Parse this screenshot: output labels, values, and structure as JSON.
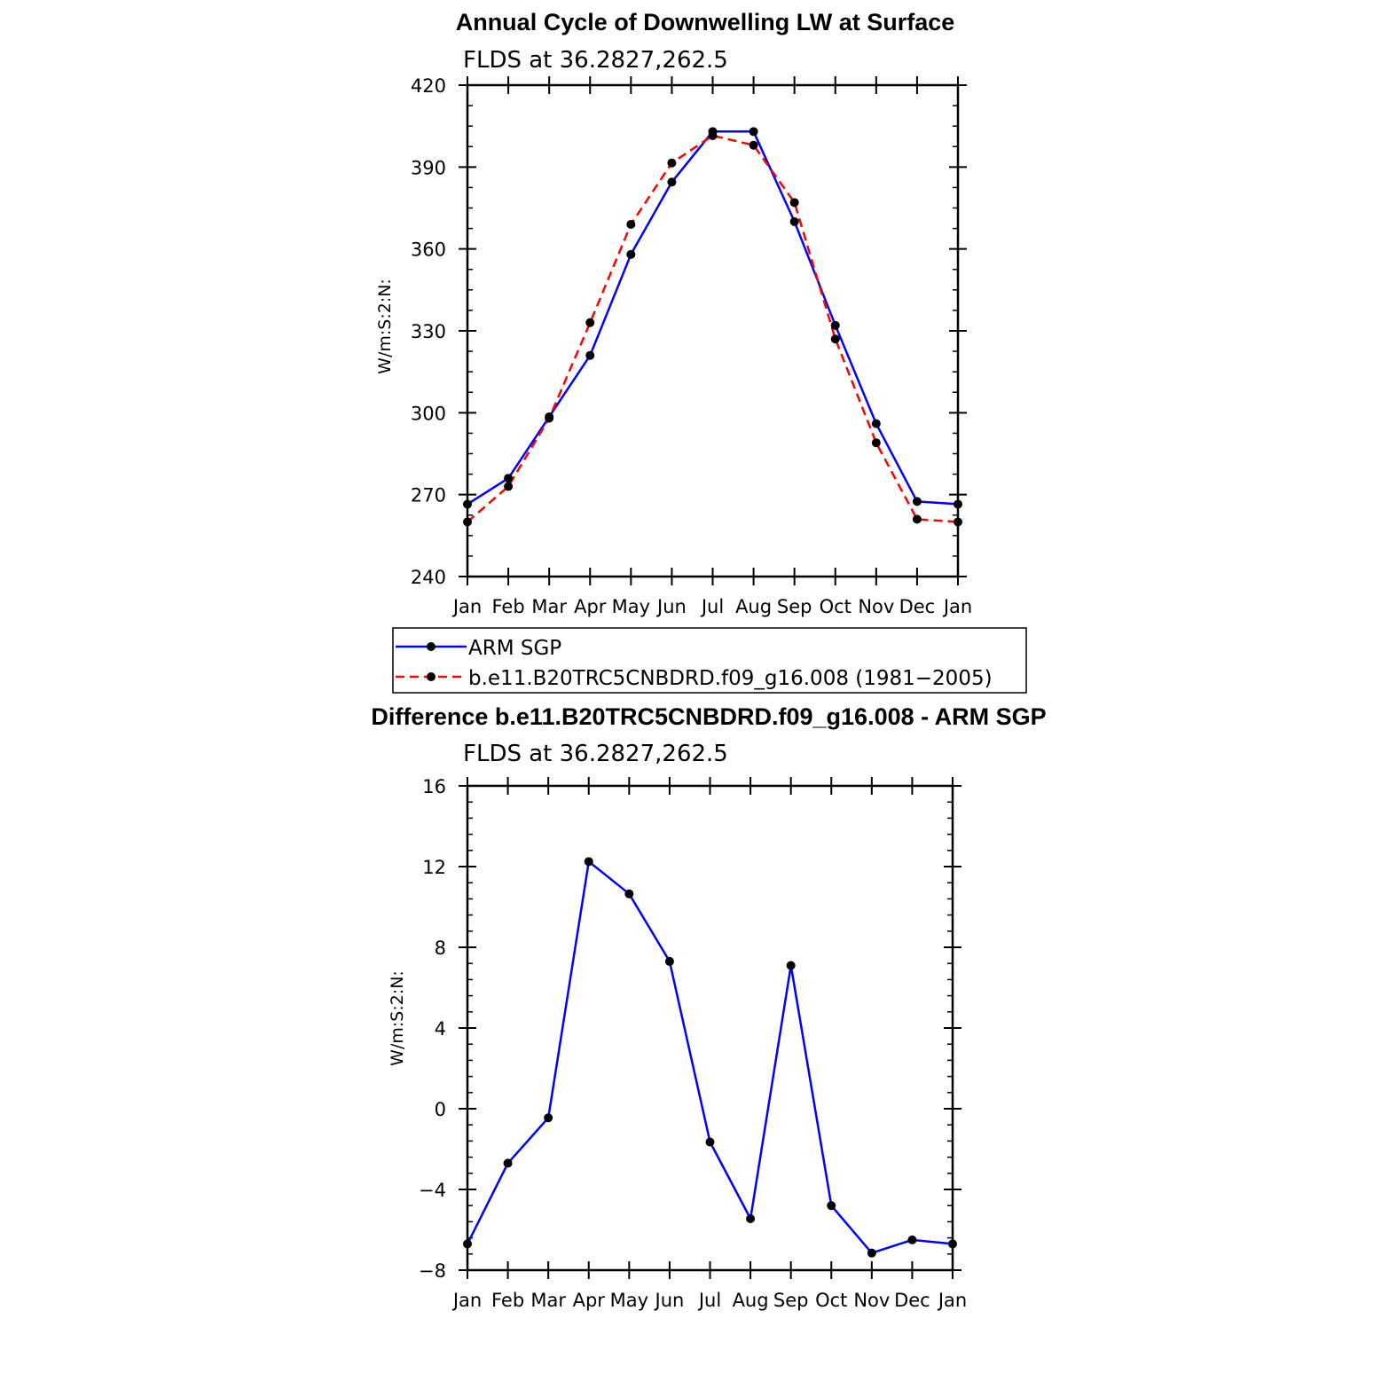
{
  "chart_data": [
    {
      "type": "line",
      "title": "Annual Cycle of Downwelling LW at Surface",
      "subtitle": "FLDS at 36.2827,262.5",
      "ylabel": "W/m:S:2:N:",
      "xlabel": "",
      "categories": [
        "Jan",
        "Feb",
        "Mar",
        "Apr",
        "May",
        "Jun",
        "Jul",
        "Aug",
        "Sep",
        "Oct",
        "Nov",
        "Dec",
        "Jan"
      ],
      "ylim": [
        240,
        420
      ],
      "yticks": [
        "240",
        "270",
        "300",
        "330",
        "360",
        "390",
        "420"
      ],
      "legend_position": "bottom",
      "series": [
        {
          "name": "ARM SGP",
          "color": "#0000ff",
          "dash": "solid",
          "values": [
            266.5,
            276,
            298.5,
            321,
            358,
            384.5,
            403,
            403,
            370,
            332,
            296,
            267.5,
            266.5
          ]
        },
        {
          "name": "b.e11.B20TRC5CNBDRD.f09_g16.008 (1981−2005)",
          "color": "#ff0000",
          "dash": "dashed",
          "values": [
            260,
            273,
            298,
            333,
            369,
            391.5,
            401.5,
            398,
            377,
            327,
            289,
            261,
            260
          ]
        }
      ]
    },
    {
      "type": "line",
      "title": "Difference b.e11.B20TRC5CNBDRD.f09_g16.008 - ARM SGP",
      "subtitle": "FLDS at 36.2827,262.5",
      "ylabel": "W/m:S:2:N:",
      "xlabel": "",
      "categories": [
        "Jan",
        "Feb",
        "Mar",
        "Apr",
        "May",
        "Jun",
        "Jul",
        "Aug",
        "Sep",
        "Oct",
        "Nov",
        "Dec",
        "Jan"
      ],
      "ylim": [
        -8,
        16
      ],
      "yticks": [
        "−8",
        "−4",
        "0",
        "4",
        "8",
        "12",
        "16"
      ],
      "series": [
        {
          "color": "#0000ff",
          "dash": "solid",
          "values": [
            -6.7,
            -2.7,
            -0.45,
            12.25,
            10.65,
            7.3,
            -1.65,
            -5.45,
            7.1,
            -4.8,
            -7.15,
            -6.5,
            -6.7
          ]
        }
      ]
    }
  ]
}
